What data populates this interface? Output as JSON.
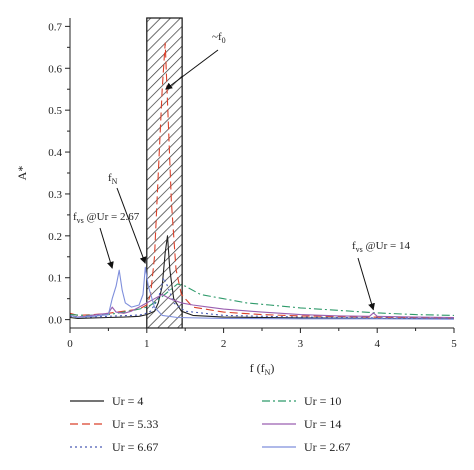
{
  "chart_data": {
    "type": "line",
    "xlabel": "f (f_N)",
    "ylabel": "A*",
    "xlim": [
      0,
      5
    ],
    "ylim": [
      -0.02,
      0.72
    ],
    "x_ticks": [
      "0",
      "1",
      "2",
      "3",
      "4",
      "5"
    ],
    "y_ticks": [
      "0.0",
      "0.1",
      "0.2",
      "0.3",
      "0.4",
      "0.5",
      "0.6",
      "0.7"
    ],
    "grid": false,
    "legend_position": "bottom",
    "shaded_band": {
      "x_from": 1.0,
      "x_to": 1.46
    },
    "annotations": [
      {
        "label": "~f_0",
        "target": [
          1.22,
          0.55
        ]
      },
      {
        "label": "f_N",
        "target": [
          0.98,
          0.125
        ]
      },
      {
        "label": "f_vs @Ur = 2.67",
        "target": [
          0.55,
          0.118
        ]
      },
      {
        "label": "f_vs @Ur = 14",
        "target": [
          3.95,
          0.014
        ]
      }
    ],
    "series": [
      {
        "name": "Ur = 4",
        "color": "#222222",
        "dash": "solid",
        "points": [
          [
            0,
            0.005
          ],
          [
            0.1,
            0.003
          ],
          [
            0.3,
            0.004
          ],
          [
            0.5,
            0.005
          ],
          [
            0.7,
            0.006
          ],
          [
            0.9,
            0.008
          ],
          [
            1.0,
            0.012
          ],
          [
            1.1,
            0.02
          ],
          [
            1.15,
            0.04
          ],
          [
            1.2,
            0.08
          ],
          [
            1.24,
            0.16
          ],
          [
            1.27,
            0.2
          ],
          [
            1.3,
            0.12
          ],
          [
            1.35,
            0.05
          ],
          [
            1.45,
            0.02
          ],
          [
            1.6,
            0.01
          ],
          [
            2.0,
            0.006
          ],
          [
            3.0,
            0.004
          ],
          [
            4.0,
            0.003
          ],
          [
            5.0,
            0.002
          ]
        ]
      },
      {
        "name": "Ur = 5.33",
        "color": "#d9412b",
        "dash": "8,4",
        "points": [
          [
            0,
            0.015
          ],
          [
            0.1,
            0.01
          ],
          [
            0.3,
            0.012
          ],
          [
            0.5,
            0.015
          ],
          [
            0.7,
            0.02
          ],
          [
            0.9,
            0.025
          ],
          [
            1.0,
            0.035
          ],
          [
            1.05,
            0.06
          ],
          [
            1.1,
            0.15
          ],
          [
            1.15,
            0.35
          ],
          [
            1.2,
            0.55
          ],
          [
            1.24,
            0.66
          ],
          [
            1.27,
            0.52
          ],
          [
            1.32,
            0.28
          ],
          [
            1.38,
            0.12
          ],
          [
            1.45,
            0.06
          ],
          [
            1.6,
            0.03
          ],
          [
            2.0,
            0.018
          ],
          [
            2.5,
            0.012
          ],
          [
            3.0,
            0.009
          ],
          [
            4.0,
            0.006
          ],
          [
            5.0,
            0.004
          ]
        ]
      },
      {
        "name": "Ur = 6.67",
        "color": "#4a5bb5",
        "dash": "2,3",
        "points": [
          [
            0,
            0.008
          ],
          [
            0.2,
            0.006
          ],
          [
            0.4,
            0.007
          ],
          [
            0.6,
            0.009
          ],
          [
            0.8,
            0.01
          ],
          [
            0.95,
            0.012
          ],
          [
            1.05,
            0.02
          ],
          [
            1.15,
            0.05
          ],
          [
            1.22,
            0.1
          ],
          [
            1.27,
            0.08
          ],
          [
            1.35,
            0.04
          ],
          [
            1.5,
            0.02
          ],
          [
            2.0,
            0.01
          ],
          [
            3.0,
            0.006
          ],
          [
            4.0,
            0.004
          ],
          [
            5.0,
            0.003
          ]
        ]
      },
      {
        "name": "Ur = 10",
        "color": "#2e9a6a",
        "dash": "8,3,2,3",
        "points": [
          [
            0,
            0.012
          ],
          [
            0.2,
            0.01
          ],
          [
            0.5,
            0.012
          ],
          [
            0.7,
            0.018
          ],
          [
            0.9,
            0.025
          ],
          [
            1.0,
            0.03
          ],
          [
            1.1,
            0.04
          ],
          [
            1.2,
            0.055
          ],
          [
            1.3,
            0.07
          ],
          [
            1.4,
            0.085
          ],
          [
            1.5,
            0.08
          ],
          [
            1.7,
            0.06
          ],
          [
            2.0,
            0.05
          ],
          [
            2.3,
            0.04
          ],
          [
            2.6,
            0.035
          ],
          [
            3.0,
            0.028
          ],
          [
            3.5,
            0.022
          ],
          [
            4.0,
            0.016
          ],
          [
            4.5,
            0.012
          ],
          [
            5.0,
            0.01
          ]
        ]
      },
      {
        "name": "Ur = 14",
        "color": "#9a5fb0",
        "dash": "solid",
        "points": [
          [
            0,
            0.01
          ],
          [
            0.1,
            0.006
          ],
          [
            0.2,
            0.008
          ],
          [
            0.35,
            0.012
          ],
          [
            0.5,
            0.015
          ],
          [
            0.55,
            0.03
          ],
          [
            0.6,
            0.018
          ],
          [
            0.7,
            0.015
          ],
          [
            0.8,
            0.02
          ],
          [
            0.9,
            0.03
          ],
          [
            1.0,
            0.04
          ],
          [
            1.1,
            0.05
          ],
          [
            1.2,
            0.06
          ],
          [
            1.3,
            0.05
          ],
          [
            1.45,
            0.04
          ],
          [
            1.6,
            0.035
          ],
          [
            1.8,
            0.03
          ],
          [
            2.0,
            0.025
          ],
          [
            2.5,
            0.018
          ],
          [
            3.0,
            0.012
          ],
          [
            3.5,
            0.009
          ],
          [
            3.9,
            0.008
          ],
          [
            3.95,
            0.016
          ],
          [
            4.0,
            0.008
          ],
          [
            4.5,
            0.006
          ],
          [
            5.0,
            0.005
          ]
        ]
      },
      {
        "name": "Ur = 2.67",
        "color": "#7f8fdc",
        "dash": "solid",
        "points": [
          [
            0,
            0.01
          ],
          [
            0.1,
            0.005
          ],
          [
            0.2,
            0.007
          ],
          [
            0.3,
            0.008
          ],
          [
            0.4,
            0.01
          ],
          [
            0.5,
            0.012
          ],
          [
            0.55,
            0.05
          ],
          [
            0.6,
            0.08
          ],
          [
            0.64,
            0.118
          ],
          [
            0.68,
            0.07
          ],
          [
            0.72,
            0.04
          ],
          [
            0.8,
            0.03
          ],
          [
            0.9,
            0.035
          ],
          [
            0.95,
            0.06
          ],
          [
            0.98,
            0.125
          ],
          [
            1.02,
            0.08
          ],
          [
            1.1,
            0.03
          ],
          [
            1.2,
            0.01
          ],
          [
            1.4,
            0.005
          ],
          [
            2.0,
            0.003
          ],
          [
            3.0,
            0.002
          ],
          [
            4.0,
            0.002
          ],
          [
            5.0,
            0.001
          ]
        ]
      }
    ]
  }
}
